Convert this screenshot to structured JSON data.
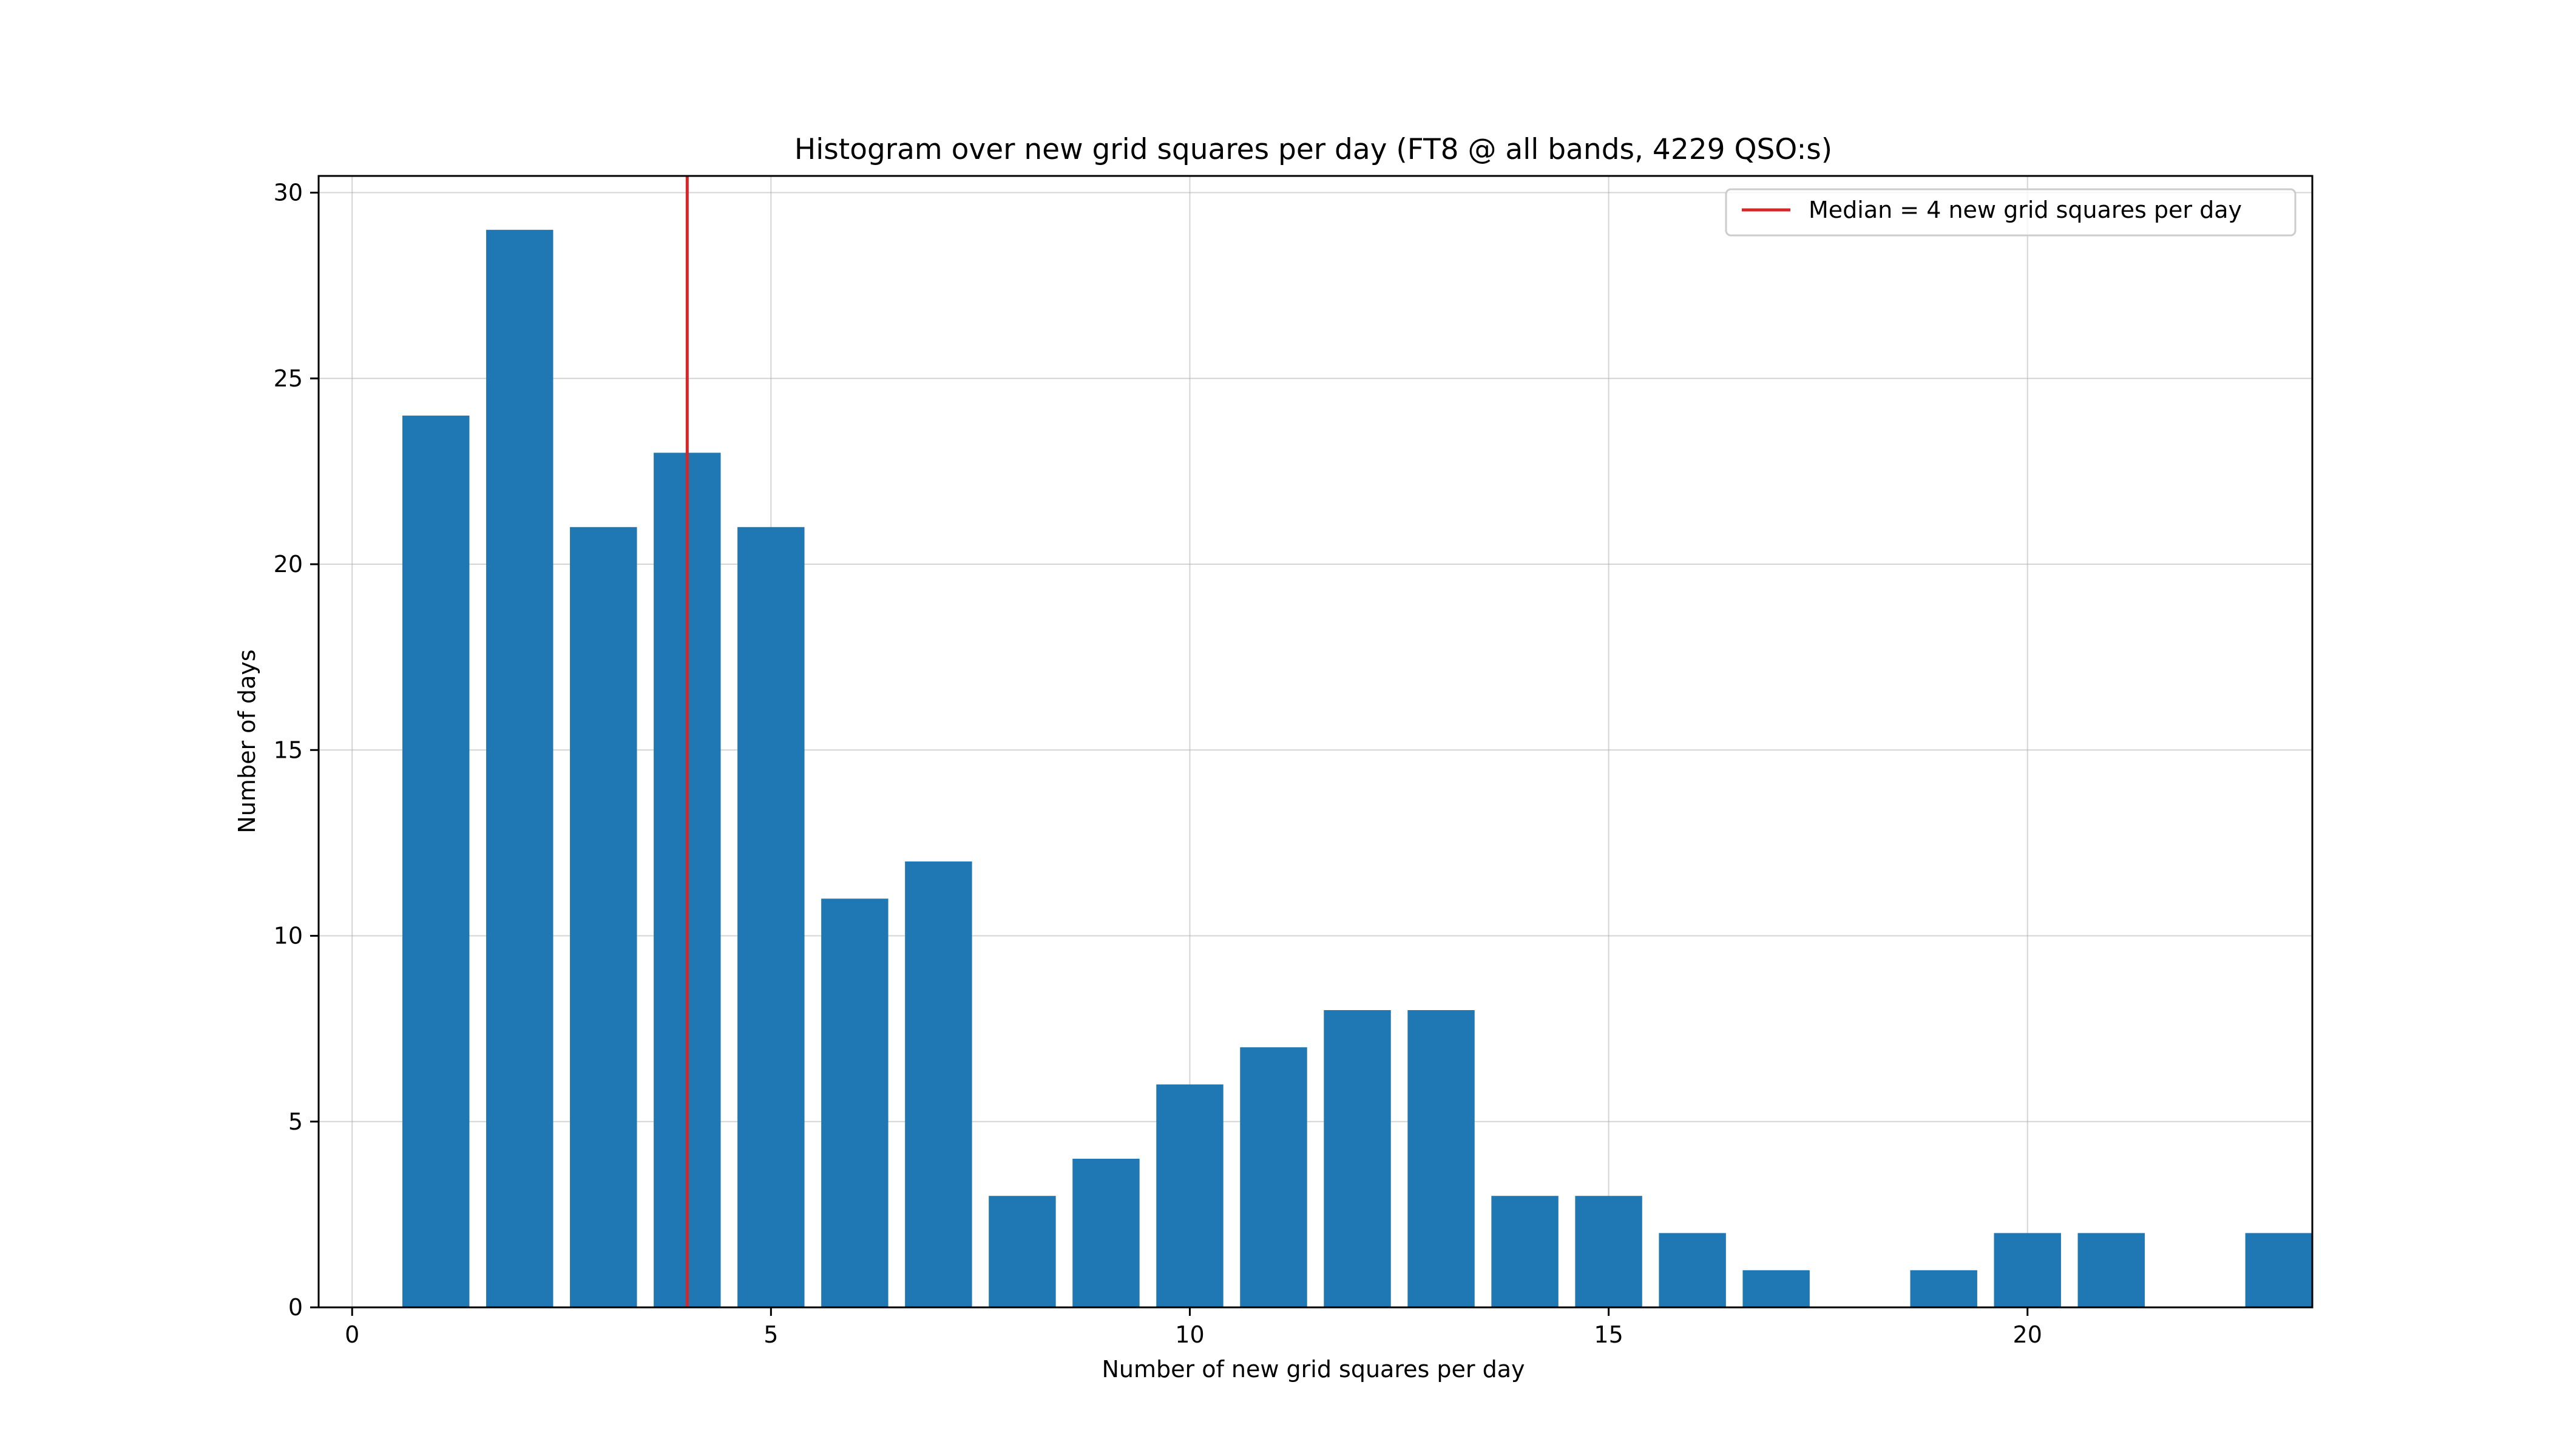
{
  "chart_data": {
    "type": "bar",
    "title": "Histogram over new grid squares per day (FT8 @ all bands, 4229 QSO:s)",
    "xlabel": "Number of new grid squares per day",
    "ylabel": "Number of days",
    "x": [
      1,
      2,
      3,
      4,
      5,
      6,
      7,
      8,
      9,
      10,
      11,
      12,
      13,
      14,
      15,
      16,
      17,
      19,
      20,
      21,
      23
    ],
    "values": [
      24,
      29,
      21,
      23,
      21,
      11,
      12,
      3,
      4,
      6,
      7,
      8,
      8,
      3,
      3,
      2,
      1,
      1,
      2,
      2,
      2
    ],
    "bar_color": "#1f77b4",
    "xlim": [
      -0.4,
      23.4
    ],
    "ylim": [
      0,
      30.45
    ],
    "xticks": [
      0,
      5,
      10,
      15,
      20
    ],
    "yticks": [
      0,
      5,
      10,
      15,
      20,
      25,
      30
    ],
    "grid": true,
    "median": {
      "value": 4,
      "color": "#d62728",
      "label": "Median = 4 new grid squares per day"
    },
    "legend": {
      "placement": "top-right"
    }
  }
}
